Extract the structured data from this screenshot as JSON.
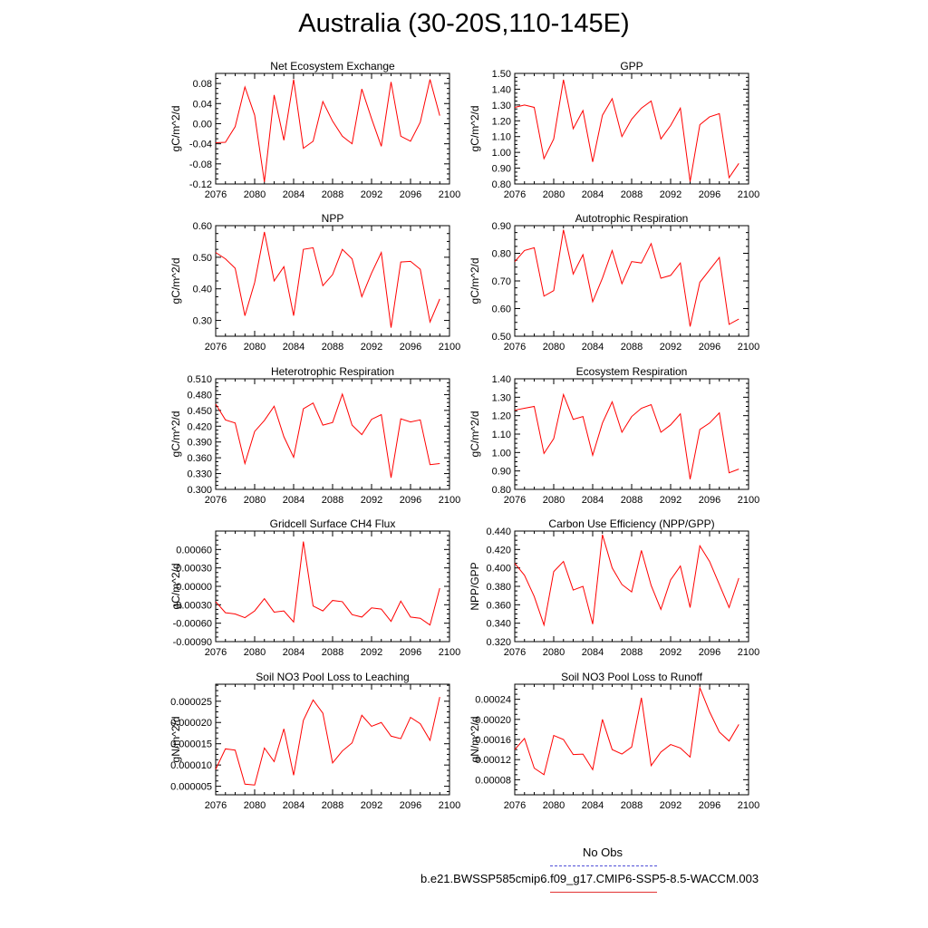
{
  "title": "Australia (30-20S,110-145E)",
  "colors": {
    "series": "#ff0000",
    "obs_line": "#4f4fd8",
    "case_line": "#e33333"
  },
  "legend": {
    "obs_label": "No Obs",
    "case_label": "b.e21.BWSSP585cmip6.f09_g17.CMIP6-SSP5-8.5-WACCM.003"
  },
  "chart_data": [
    {
      "type": "line",
      "title": "Net Ecosystem Exchange",
      "ylabel": "gC/m^2/d",
      "xlim": [
        2076,
        2100
      ],
      "ylim": [
        -0.12,
        0.1
      ],
      "xticks": [
        2076,
        2080,
        2084,
        2088,
        2092,
        2096,
        2100
      ],
      "yticks": [
        -0.12,
        -0.08,
        -0.04,
        0.0,
        0.04,
        0.08
      ],
      "ytick_labels": [
        "-0.12",
        "-0.08",
        "-0.04",
        "0.00",
        "0.04",
        "0.08"
      ],
      "x": [
        2076,
        2077,
        2078,
        2079,
        2080,
        2081,
        2082,
        2083,
        2084,
        2085,
        2086,
        2087,
        2088,
        2089,
        2090,
        2091,
        2092,
        2093,
        2094,
        2095,
        2096,
        2097,
        2098,
        2099
      ],
      "series": [
        {
          "values": [
            -0.038,
            -0.037,
            -0.006,
            0.073,
            0.017,
            -0.116,
            0.057,
            -0.033,
            0.088,
            -0.049,
            -0.035,
            0.044,
            0.005,
            -0.025,
            -0.04,
            0.069,
            0.01,
            -0.045,
            0.083,
            -0.025,
            -0.035,
            0.003,
            0.088,
            0.016
          ]
        }
      ]
    },
    {
      "type": "line",
      "title": "GPP",
      "ylabel": "gC/m^2/d",
      "xlim": [
        2076,
        2100
      ],
      "ylim": [
        0.8,
        1.5
      ],
      "xticks": [
        2076,
        2080,
        2084,
        2088,
        2092,
        2096,
        2100
      ],
      "yticks": [
        0.8,
        0.9,
        1.0,
        1.1,
        1.2,
        1.3,
        1.4,
        1.5
      ],
      "ytick_labels": [
        "0.80",
        "0.90",
        "1.00",
        "1.10",
        "1.20",
        "1.30",
        "1.40",
        "1.50"
      ],
      "x": [
        2076,
        2077,
        2078,
        2079,
        2080,
        2081,
        2082,
        2083,
        2084,
        2085,
        2086,
        2087,
        2088,
        2089,
        2090,
        2091,
        2092,
        2093,
        2094,
        2095,
        2096,
        2097,
        2098,
        2099
      ],
      "series": [
        {
          "values": [
            1.285,
            1.3,
            1.285,
            0.96,
            1.085,
            1.46,
            1.15,
            1.265,
            0.94,
            1.235,
            1.34,
            1.1,
            1.21,
            1.28,
            1.325,
            1.085,
            1.17,
            1.28,
            0.815,
            1.175,
            1.225,
            1.245,
            0.84,
            0.93
          ]
        }
      ]
    },
    {
      "type": "line",
      "title": "NPP",
      "ylabel": "gC/m^2/d",
      "xlim": [
        2076,
        2100
      ],
      "ylim": [
        0.25,
        0.6
      ],
      "xticks": [
        2076,
        2080,
        2084,
        2088,
        2092,
        2096,
        2100
      ],
      "yticks": [
        0.3,
        0.4,
        0.5,
        0.6
      ],
      "ytick_labels": [
        "0.30",
        "0.40",
        "0.50",
        "0.60"
      ],
      "x": [
        2076,
        2077,
        2078,
        2079,
        2080,
        2081,
        2082,
        2083,
        2084,
        2085,
        2086,
        2087,
        2088,
        2089,
        2090,
        2091,
        2092,
        2093,
        2094,
        2095,
        2096,
        2097,
        2098,
        2099
      ],
      "series": [
        {
          "values": [
            0.515,
            0.495,
            0.465,
            0.315,
            0.42,
            0.58,
            0.425,
            0.47,
            0.315,
            0.525,
            0.53,
            0.41,
            0.445,
            0.525,
            0.495,
            0.375,
            0.45,
            0.515,
            0.277,
            0.485,
            0.487,
            0.462,
            0.295,
            0.368
          ]
        }
      ]
    },
    {
      "type": "line",
      "title": "Autotrophic Respiration",
      "ylabel": "gC/m^2/d",
      "xlim": [
        2076,
        2100
      ],
      "ylim": [
        0.5,
        0.9
      ],
      "xticks": [
        2076,
        2080,
        2084,
        2088,
        2092,
        2096,
        2100
      ],
      "yticks": [
        0.5,
        0.6,
        0.7,
        0.8,
        0.9
      ],
      "ytick_labels": [
        "0.50",
        "0.60",
        "0.70",
        "0.80",
        "0.90"
      ],
      "x": [
        2076,
        2077,
        2078,
        2079,
        2080,
        2081,
        2082,
        2083,
        2084,
        2085,
        2086,
        2087,
        2088,
        2089,
        2090,
        2091,
        2092,
        2093,
        2094,
        2095,
        2096,
        2097,
        2098,
        2099
      ],
      "series": [
        {
          "values": [
            0.77,
            0.81,
            0.82,
            0.645,
            0.665,
            0.885,
            0.725,
            0.795,
            0.625,
            0.71,
            0.81,
            0.69,
            0.77,
            0.765,
            0.835,
            0.71,
            0.72,
            0.765,
            0.535,
            0.695,
            0.74,
            0.785,
            0.543,
            0.562
          ]
        }
      ]
    },
    {
      "type": "line",
      "title": "Heterotrophic Respiration",
      "ylabel": "gC/m^2/d",
      "xlim": [
        2076,
        2100
      ],
      "ylim": [
        0.3,
        0.51
      ],
      "xticks": [
        2076,
        2080,
        2084,
        2088,
        2092,
        2096,
        2100
      ],
      "yticks": [
        0.3,
        0.33,
        0.36,
        0.39,
        0.42,
        0.45,
        0.48,
        0.51
      ],
      "ytick_labels": [
        "0.300",
        "0.330",
        "0.360",
        "0.390",
        "0.420",
        "0.450",
        "0.480",
        "0.510"
      ],
      "x": [
        2076,
        2077,
        2078,
        2079,
        2080,
        2081,
        2082,
        2083,
        2084,
        2085,
        2086,
        2087,
        2088,
        2089,
        2090,
        2091,
        2092,
        2093,
        2094,
        2095,
        2096,
        2097,
        2098,
        2099
      ],
      "series": [
        {
          "values": [
            0.462,
            0.432,
            0.426,
            0.349,
            0.41,
            0.431,
            0.458,
            0.4,
            0.361,
            0.453,
            0.464,
            0.422,
            0.427,
            0.481,
            0.422,
            0.404,
            0.433,
            0.442,
            0.322,
            0.434,
            0.428,
            0.432,
            0.347,
            0.349
          ]
        }
      ]
    },
    {
      "type": "line",
      "title": "Ecosystem Respiration",
      "ylabel": "gC/m^2/d",
      "xlim": [
        2076,
        2100
      ],
      "ylim": [
        0.8,
        1.4
      ],
      "xticks": [
        2076,
        2080,
        2084,
        2088,
        2092,
        2096,
        2100
      ],
      "yticks": [
        0.8,
        0.9,
        1.0,
        1.1,
        1.2,
        1.3,
        1.4
      ],
      "ytick_labels": [
        "0.80",
        "0.90",
        "1.00",
        "1.10",
        "1.20",
        "1.30",
        "1.40"
      ],
      "x": [
        2076,
        2077,
        2078,
        2079,
        2080,
        2081,
        2082,
        2083,
        2084,
        2085,
        2086,
        2087,
        2088,
        2089,
        2090,
        2091,
        2092,
        2093,
        2094,
        2095,
        2096,
        2097,
        2098,
        2099
      ],
      "series": [
        {
          "values": [
            1.23,
            1.24,
            1.25,
            0.995,
            1.075,
            1.315,
            1.18,
            1.195,
            0.985,
            1.16,
            1.275,
            1.11,
            1.195,
            1.24,
            1.26,
            1.11,
            1.15,
            1.21,
            0.855,
            1.125,
            1.16,
            1.215,
            0.89,
            0.91
          ]
        }
      ]
    },
    {
      "type": "line",
      "title": "Gridcell Surface CH4 Flux",
      "ylabel": "gC/m^2/d",
      "xlim": [
        2076,
        2100
      ],
      "ylim": [
        -0.0009,
        0.0009
      ],
      "xticks": [
        2076,
        2080,
        2084,
        2088,
        2092,
        2096,
        2100
      ],
      "yticks": [
        -0.0009,
        -0.0006,
        -0.0003,
        0.0,
        0.0003,
        0.0006
      ],
      "ytick_labels": [
        "-0.00090",
        "-0.00060",
        "-0.00030",
        "0.00000",
        "0.00030",
        "0.00060"
      ],
      "x": [
        2076,
        2077,
        2078,
        2079,
        2080,
        2081,
        2082,
        2083,
        2084,
        2085,
        2086,
        2087,
        2088,
        2089,
        2090,
        2091,
        2092,
        2093,
        2094,
        2095,
        2096,
        2097,
        2098,
        2099
      ],
      "series": [
        {
          "values": [
            -0.00025,
            -0.00043,
            -0.00045,
            -0.00051,
            -0.0004,
            -0.0002,
            -0.00042,
            -0.0004,
            -0.00058,
            0.00073,
            -0.00032,
            -0.0004,
            -0.00023,
            -0.00025,
            -0.00046,
            -0.0005,
            -0.00035,
            -0.00037,
            -0.00057,
            -0.00024,
            -0.0005,
            -0.00052,
            -0.00063,
            -3e-05
          ]
        }
      ]
    },
    {
      "type": "line",
      "title": "Carbon Use Efficiency (NPP/GPP)",
      "ylabel": "NPP/GPP",
      "xlim": [
        2076,
        2100
      ],
      "ylim": [
        0.32,
        0.44
      ],
      "xticks": [
        2076,
        2080,
        2084,
        2088,
        2092,
        2096,
        2100
      ],
      "yticks": [
        0.32,
        0.34,
        0.36,
        0.38,
        0.4,
        0.42,
        0.44
      ],
      "ytick_labels": [
        "0.320",
        "0.340",
        "0.360",
        "0.380",
        "0.400",
        "0.420",
        "0.440"
      ],
      "x": [
        2076,
        2077,
        2078,
        2079,
        2080,
        2081,
        2082,
        2083,
        2084,
        2085,
        2086,
        2087,
        2088,
        2089,
        2090,
        2091,
        2092,
        2093,
        2094,
        2095,
        2096,
        2097,
        2098,
        2099
      ],
      "series": [
        {
          "values": [
            0.405,
            0.392,
            0.369,
            0.338,
            0.396,
            0.407,
            0.376,
            0.38,
            0.339,
            0.436,
            0.4,
            0.382,
            0.374,
            0.419,
            0.381,
            0.355,
            0.387,
            0.402,
            0.357,
            0.424,
            0.407,
            0.382,
            0.357,
            0.389
          ]
        }
      ]
    },
    {
      "type": "line",
      "title": "Soil NO3 Pool Loss to Leaching",
      "ylabel": "gN/m^2/d",
      "xlim": [
        2076,
        2100
      ],
      "ylim": [
        3e-06,
        2.9e-05
      ],
      "xticks": [
        2076,
        2080,
        2084,
        2088,
        2092,
        2096,
        2100
      ],
      "yticks": [
        5e-06,
        1e-05,
        1.5e-05,
        2e-05,
        2.5e-05
      ],
      "ytick_labels": [
        "0.000005",
        "0.000010",
        "0.000015",
        "0.000020",
        "0.000025"
      ],
      "x": [
        2076,
        2077,
        2078,
        2079,
        2080,
        2081,
        2082,
        2083,
        2084,
        2085,
        2086,
        2087,
        2088,
        2089,
        2090,
        2091,
        2092,
        2093,
        2094,
        2095,
        2096,
        2097,
        2098,
        2099
      ],
      "series": [
        {
          "values": [
            9e-06,
            1.38e-05,
            1.35e-05,
            5.5e-06,
            5.3e-06,
            1.4e-05,
            1.08e-05,
            1.85e-05,
            7.6e-06,
            2.05e-05,
            2.53e-05,
            2.22e-05,
            1.05e-05,
            1.33e-05,
            1.52e-05,
            2.17e-05,
            1.91e-05,
            2e-05,
            1.68e-05,
            1.62e-05,
            2.12e-05,
            1.97e-05,
            1.58e-05,
            2.6e-05
          ]
        }
      ]
    },
    {
      "type": "line",
      "title": "Soil NO3 Pool Loss to Runoff",
      "ylabel": "gN/m^2/d",
      "xlim": [
        2076,
        2100
      ],
      "ylim": [
        5e-05,
        0.00027
      ],
      "xticks": [
        2076,
        2080,
        2084,
        2088,
        2092,
        2096,
        2100
      ],
      "yticks": [
        8e-05,
        0.00012,
        0.00016,
        0.0002,
        0.00024
      ],
      "ytick_labels": [
        "0.00008",
        "0.00012",
        "0.00016",
        "0.00020",
        "0.00024"
      ],
      "x": [
        2076,
        2077,
        2078,
        2079,
        2080,
        2081,
        2082,
        2083,
        2084,
        2085,
        2086,
        2087,
        2088,
        2089,
        2090,
        2091,
        2092,
        2093,
        2094,
        2095,
        2096,
        2097,
        2098,
        2099
      ],
      "series": [
        {
          "values": [
            0.00014,
            0.000162,
            0.000103,
            9e-05,
            0.000168,
            0.00016,
            0.00013,
            0.000131,
            0.0001,
            0.0002,
            0.00014,
            0.000131,
            0.000145,
            0.000243,
            0.000108,
            0.000135,
            0.00015,
            0.000143,
            0.000125,
            0.000263,
            0.000215,
            0.000175,
            0.000157,
            0.00019
          ]
        }
      ]
    }
  ]
}
